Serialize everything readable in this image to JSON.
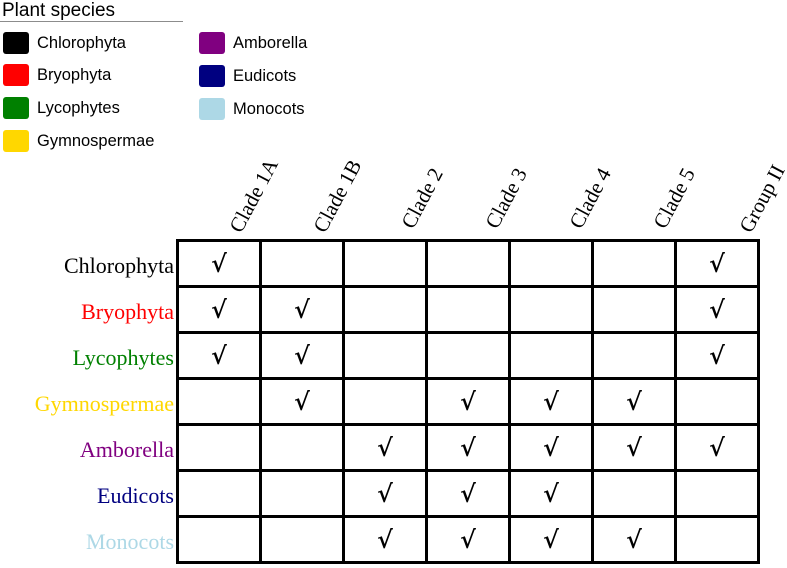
{
  "legend": {
    "title": "Plant species",
    "items": [
      {
        "label": "Chlorophyta",
        "color": "#000000"
      },
      {
        "label": "Bryophyta",
        "color": "#ff0000"
      },
      {
        "label": "Lycophytes",
        "color": "#008000"
      },
      {
        "label": "Gymnospermae",
        "color": "#ffd700"
      },
      {
        "label": "Amborella",
        "color": "#800080"
      },
      {
        "label": "Eudicots",
        "color": "#000080"
      },
      {
        "label": "Monocots",
        "color": "#add8e6"
      }
    ]
  },
  "columns": [
    "Clade 1A",
    "Clade 1B",
    "Clade 2",
    "Clade 3",
    "Clade 4",
    "Clade 5",
    "Group II"
  ],
  "check_symbol": "√",
  "rows": [
    {
      "label": "Chlorophyta",
      "color": "#000000",
      "marks": [
        true,
        false,
        false,
        false,
        false,
        false,
        true
      ]
    },
    {
      "label": "Bryophyta",
      "color": "#ff0000",
      "marks": [
        true,
        true,
        false,
        false,
        false,
        false,
        true
      ]
    },
    {
      "label": "Lycophytes",
      "color": "#008000",
      "marks": [
        true,
        true,
        false,
        false,
        false,
        false,
        true
      ]
    },
    {
      "label": "Gymnospermae",
      "color": "#ffd700",
      "marks": [
        false,
        true,
        false,
        true,
        true,
        true,
        false
      ]
    },
    {
      "label": "Amborella",
      "color": "#800080",
      "marks": [
        false,
        false,
        true,
        true,
        true,
        true,
        true
      ]
    },
    {
      "label": "Eudicots",
      "color": "#000080",
      "marks": [
        false,
        false,
        true,
        true,
        true,
        false,
        false
      ]
    },
    {
      "label": "Monocots",
      "color": "#add8e6",
      "marks": [
        false,
        false,
        true,
        true,
        true,
        true,
        false
      ]
    }
  ]
}
